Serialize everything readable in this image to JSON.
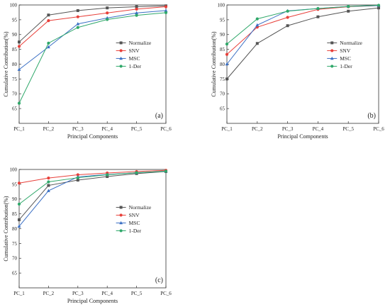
{
  "chart_data": [
    {
      "type": "line",
      "panel_label": "(a)",
      "categories": [
        "PC_1",
        "PC_2",
        "PC_3",
        "PC_4",
        "PC_5",
        "PC_6"
      ],
      "xlabel": "Principal Components",
      "ylabel": "Cumulative Contribution(%)",
      "ylim": [
        60,
        100
      ],
      "yticks": [
        65,
        70,
        75,
        80,
        85,
        90,
        95,
        100
      ],
      "grid": false,
      "legend_position": "right-middle",
      "series": [
        {
          "name": "Normalize",
          "color": "#555555",
          "marker": "square",
          "values": [
            87.5,
            96.6,
            98.1,
            99.0,
            99.4,
            99.7
          ]
        },
        {
          "name": "SNV",
          "color": "#e8403a",
          "marker": "circle",
          "values": [
            86.0,
            94.7,
            96.0,
            97.3,
            98.6,
            99.4
          ]
        },
        {
          "name": "MSC",
          "color": "#3a6fc4",
          "marker": "triangle",
          "values": [
            78.2,
            85.8,
            93.6,
            95.6,
            97.3,
            98.1
          ]
        },
        {
          "name": "1-Der",
          "color": "#2fa86a",
          "marker": "circle",
          "values": [
            66.8,
            87.1,
            92.4,
            95.1,
            96.5,
            97.4
          ]
        }
      ]
    },
    {
      "type": "line",
      "panel_label": "(b)",
      "categories": [
        "PC_1",
        "PC_2",
        "PC_3",
        "PC_4",
        "PC_5",
        "PC_6"
      ],
      "xlabel": "Principal Components",
      "ylabel": "Cumulative Contribution(%)",
      "ylim": [
        60,
        100
      ],
      "yticks": [
        65,
        70,
        75,
        80,
        85,
        90,
        95,
        100
      ],
      "grid": false,
      "legend_position": "right-middle",
      "series": [
        {
          "name": "Normalize",
          "color": "#555555",
          "marker": "square",
          "values": [
            75.0,
            87.0,
            93.0,
            96.0,
            97.9,
            99.0
          ]
        },
        {
          "name": "SNV",
          "color": "#e8403a",
          "marker": "circle",
          "values": [
            83.3,
            92.5,
            95.8,
            98.5,
            99.4,
            99.8
          ]
        },
        {
          "name": "MSC",
          "color": "#3a6fc4",
          "marker": "triangle",
          "values": [
            80.0,
            93.2,
            98.0,
            98.8,
            99.5,
            99.8
          ]
        },
        {
          "name": "1-Der",
          "color": "#2fa86a",
          "marker": "circle",
          "values": [
            86.8,
            95.3,
            97.9,
            98.8,
            99.5,
            99.9
          ]
        }
      ]
    },
    {
      "type": "line",
      "panel_label": "(c)",
      "categories": [
        "PC_1",
        "PC_2",
        "PC_3",
        "PC_4",
        "PC_5",
        "PC_6"
      ],
      "xlabel": "Principal Components",
      "ylabel": "Cumulative Contribution(%)",
      "ylim": [
        60,
        100
      ],
      "yticks": [
        65,
        70,
        75,
        80,
        85,
        90,
        95,
        100
      ],
      "grid": false,
      "legend_position": "right-middle",
      "series": [
        {
          "name": "Normalize",
          "color": "#555555",
          "marker": "square",
          "values": [
            83.0,
            94.6,
            96.4,
            97.6,
            98.6,
            99.3
          ]
        },
        {
          "name": "SNV",
          "color": "#e8403a",
          "marker": "circle",
          "values": [
            95.4,
            97.1,
            98.2,
            98.8,
            99.3,
            99.7
          ]
        },
        {
          "name": "MSC",
          "color": "#3a6fc4",
          "marker": "triangle",
          "values": [
            80.8,
            92.8,
            97.5,
            98.3,
            98.9,
            99.4
          ]
        },
        {
          "name": "1-Der",
          "color": "#2fa86a",
          "marker": "circle",
          "values": [
            88.3,
            95.8,
            97.2,
            98.2,
            98.9,
            99.4
          ]
        }
      ]
    }
  ]
}
